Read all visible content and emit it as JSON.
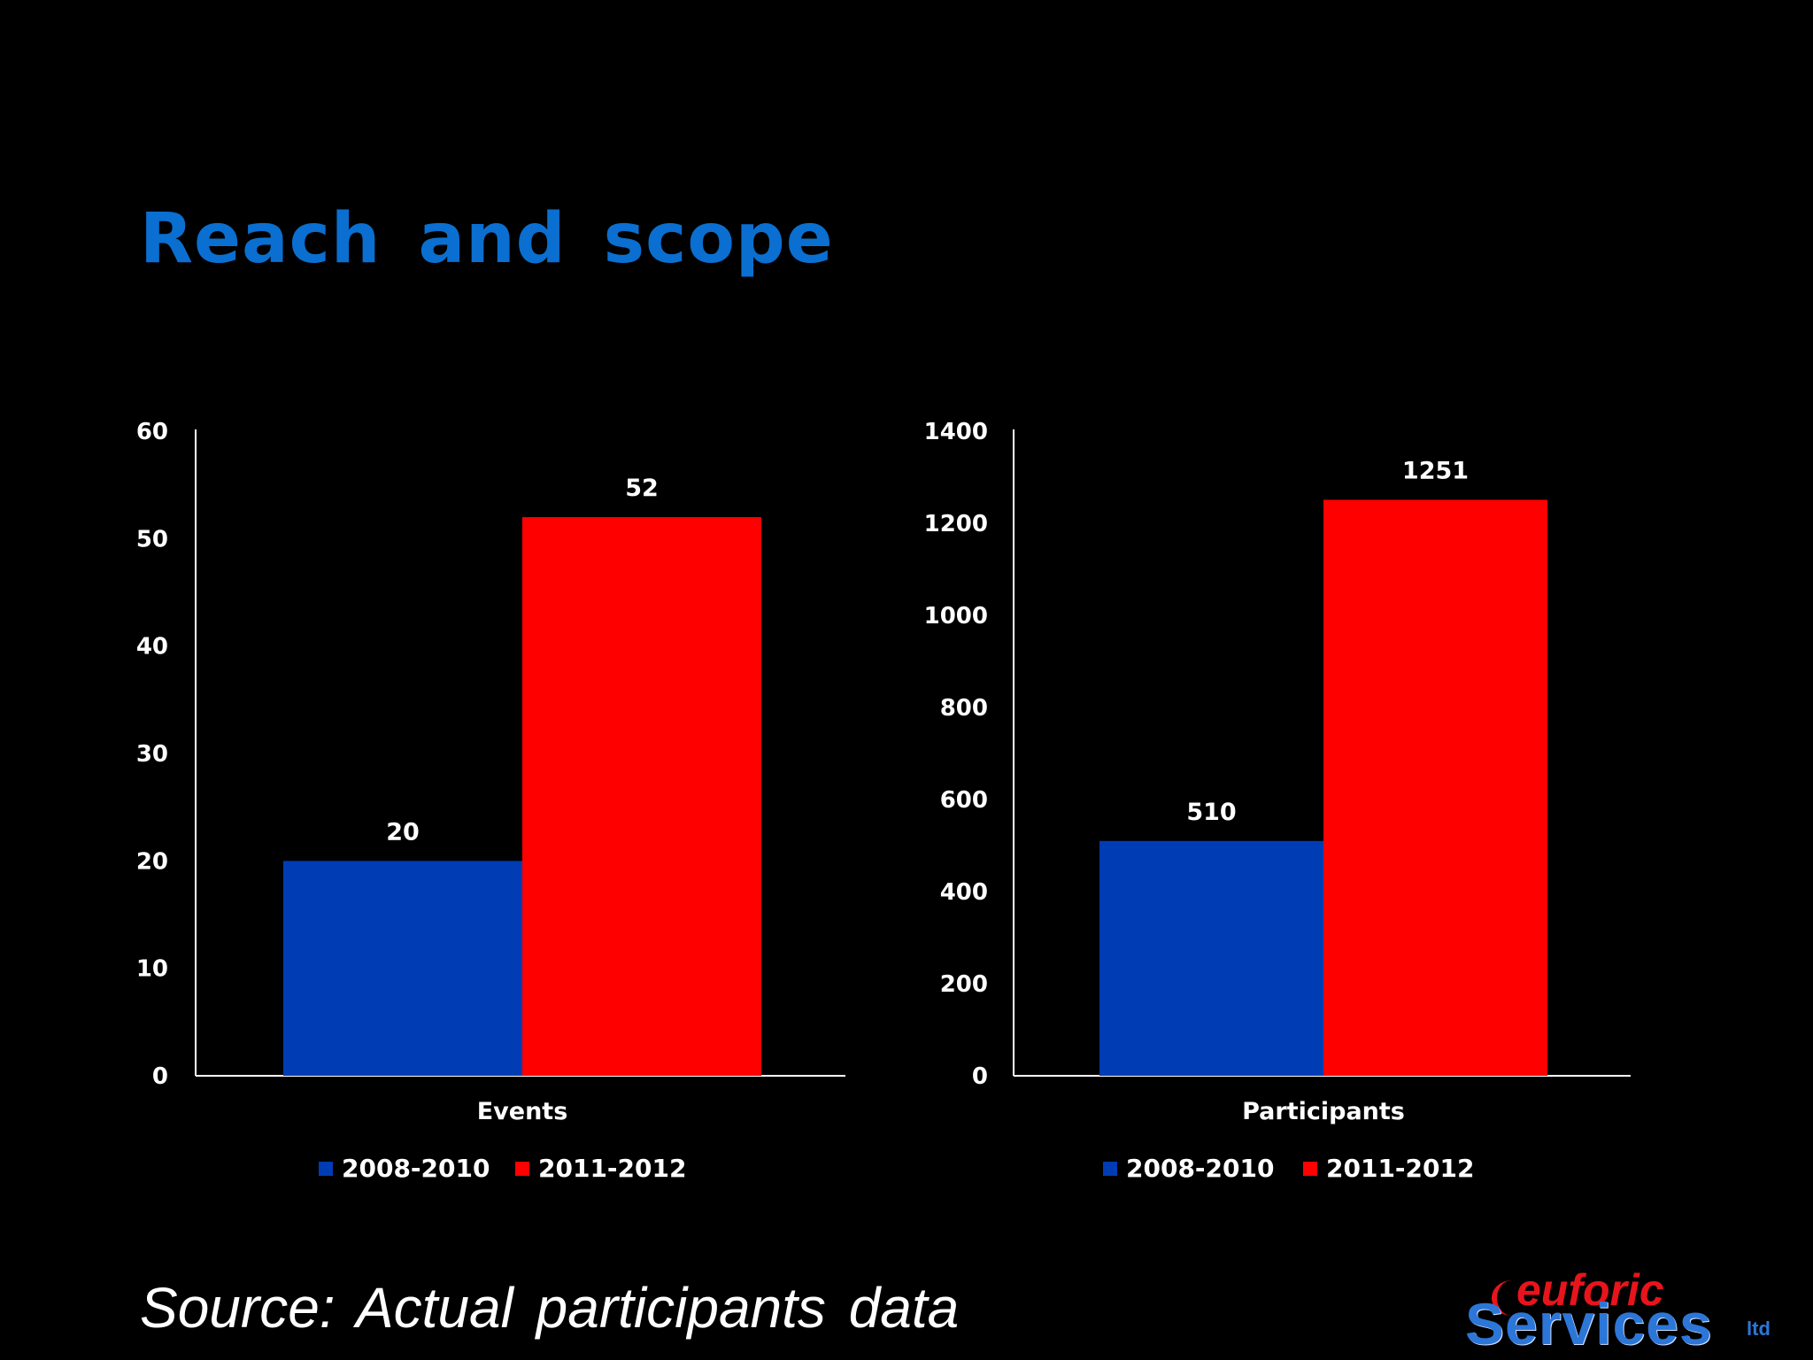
{
  "slide": {
    "title": "Reach and scope",
    "title_color": "#0a6fd0",
    "source_note": "Source: Actual participants data",
    "logo": {
      "line1": "euforic",
      "line2": "Services",
      "suffix": "ltd"
    }
  },
  "chart_data": [
    {
      "type": "bar",
      "categories": [
        "Events"
      ],
      "series": [
        {
          "name": "2008-2010",
          "values": [
            20
          ],
          "color": "#003cb4"
        },
        {
          "name": "2011-2012",
          "values": [
            52
          ],
          "color": "#ff0000"
        }
      ],
      "ylim": [
        0,
        60
      ],
      "yticks": [
        0,
        10,
        20,
        30,
        40,
        50,
        60
      ],
      "data_labels": true,
      "grid": false,
      "legend_position": "bottom"
    },
    {
      "type": "bar",
      "categories": [
        "Participants"
      ],
      "series": [
        {
          "name": "2008-2010",
          "values": [
            510
          ],
          "color": "#003cb4"
        },
        {
          "name": "2011-2012",
          "values": [
            1251
          ],
          "color": "#ff0000"
        }
      ],
      "ylim": [
        0,
        1400
      ],
      "yticks": [
        0,
        200,
        400,
        600,
        800,
        1000,
        1200,
        1400
      ],
      "data_labels": true,
      "grid": false,
      "legend_position": "bottom"
    }
  ]
}
